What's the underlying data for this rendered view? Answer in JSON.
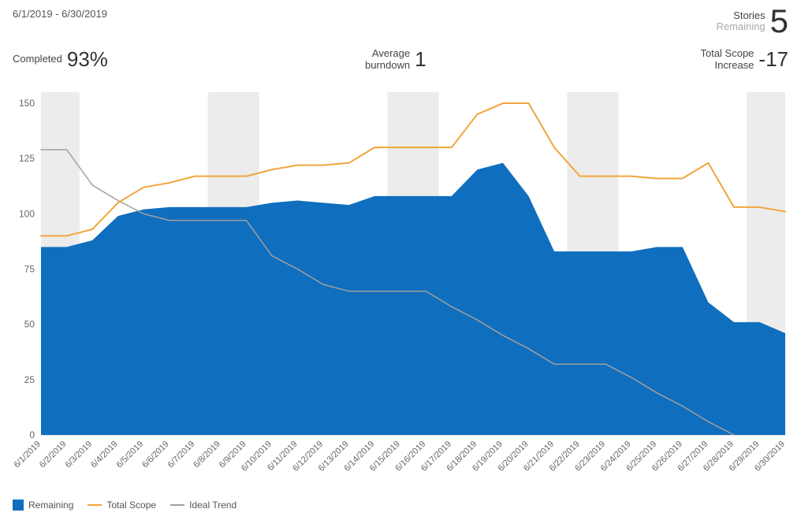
{
  "header": {
    "date_range": "6/1/2019 - 6/30/2019",
    "stories_label_1": "Stories",
    "stories_label_2": "Remaining",
    "stories_value": "5"
  },
  "metrics": {
    "completed_label": "Completed",
    "completed_value": "93%",
    "burndown_label_1": "Average",
    "burndown_label_2": "burndown",
    "burndown_value": "1",
    "scope_label_1": "Total Scope",
    "scope_label_2": "Increase",
    "scope_value": "-17"
  },
  "chart": {
    "type": "burndown",
    "background_color": "#ffffff",
    "weekend_band_color": "#dcdcdc",
    "weekend_band_opacity": 0.55,
    "grid_color": "#cccccc",
    "y": {
      "min": 0,
      "max": 155,
      "ticks": [
        0,
        25,
        50,
        75,
        100,
        125,
        150
      ],
      "label_fontsize": 12,
      "label_color": "#666666"
    },
    "x": {
      "labels": [
        "6/1/2019",
        "6/2/2019",
        "6/3/2019",
        "6/4/2019",
        "6/5/2019",
        "6/6/2019",
        "6/7/2019",
        "6/8/2019",
        "6/9/2019",
        "6/10/2019",
        "6/11/2019",
        "6/12/2019",
        "6/13/2019",
        "6/14/2019",
        "6/15/2019",
        "6/16/2019",
        "6/17/2019",
        "6/18/2019",
        "6/19/2019",
        "6/20/2019",
        "6/21/2019",
        "6/22/2019",
        "6/23/2019",
        "6/24/2019",
        "6/25/2019",
        "6/26/2019",
        "6/27/2019",
        "6/28/2019",
        "6/29/2019",
        "6/30/2019"
      ],
      "label_fontsize": 11,
      "label_color": "#666666",
      "rotation_deg": -45
    },
    "weekend_indices": [
      [
        0,
        1
      ],
      [
        7,
        8
      ],
      [
        14,
        15
      ],
      [
        21,
        22
      ],
      [
        28,
        29
      ]
    ],
    "series": {
      "remaining": {
        "label": "Remaining",
        "type": "area",
        "color": "#106ebe",
        "fill_opacity": 1.0,
        "values": [
          85,
          85,
          88,
          99,
          102,
          103,
          103,
          103,
          103,
          105,
          106,
          105,
          104,
          108,
          108,
          108,
          108,
          120,
          123,
          108,
          83,
          83,
          83,
          83,
          85,
          85,
          60,
          51,
          51,
          46
        ]
      },
      "total_scope": {
        "label": "Total Scope",
        "type": "line",
        "color": "#f2a53c",
        "stroke_width": 2,
        "values": [
          90,
          90,
          93,
          105,
          112,
          114,
          117,
          117,
          117,
          120,
          122,
          122,
          123,
          130,
          130,
          130,
          130,
          145,
          150,
          150,
          130,
          117,
          117,
          117,
          116,
          116,
          123,
          103,
          103,
          101
        ]
      },
      "ideal_trend": {
        "label": "Ideal Trend",
        "type": "line",
        "color": "#a0a0a0",
        "stroke_width": 1.5,
        "values": [
          129,
          129,
          113,
          106,
          100,
          97,
          97,
          97,
          97,
          81,
          75,
          68,
          65,
          65,
          65,
          65,
          58,
          52,
          45,
          39,
          32,
          32,
          32,
          26,
          19,
          13,
          6,
          0,
          null,
          null
        ]
      }
    },
    "legend": {
      "items": [
        "remaining",
        "total_scope",
        "ideal_trend"
      ],
      "fontsize": 12,
      "color": "#555555"
    }
  }
}
